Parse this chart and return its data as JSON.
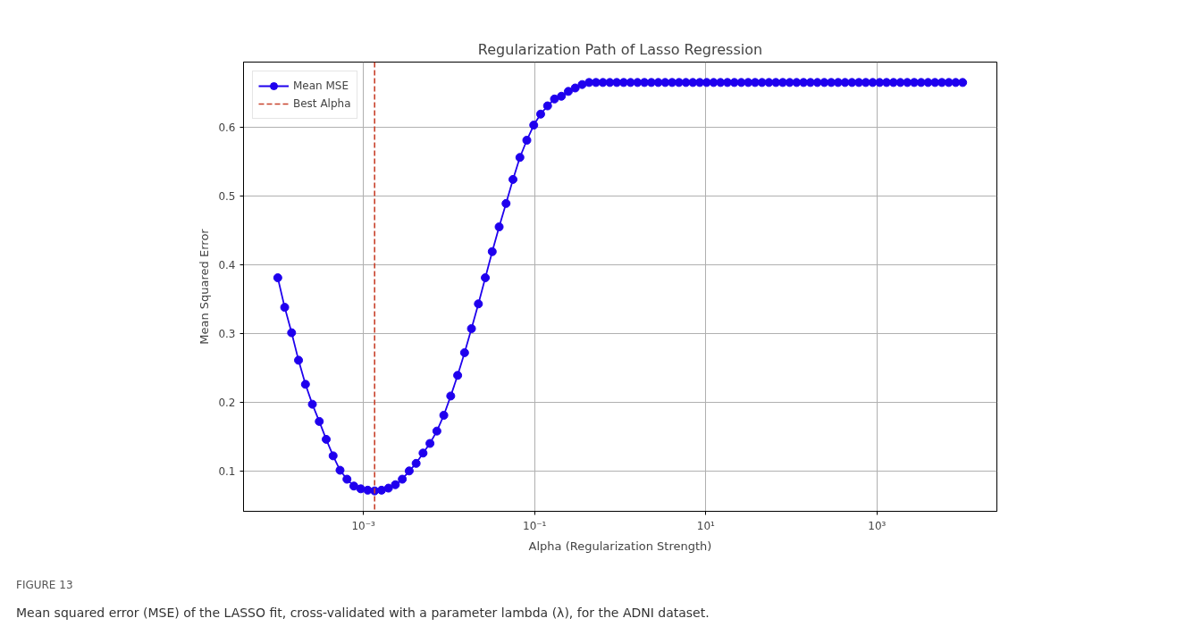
{
  "chart_data": {
    "type": "line",
    "title": "Regularization Path of Lasso Regression",
    "xlabel": "Alpha (Regularization Strength)",
    "ylabel": "Mean Squared Error",
    "x": [
      0.0001,
      0.00012045,
      0.00014508,
      0.00017475,
      0.00021049,
      0.00025354,
      0.00030539,
      0.00036784,
      0.00044306,
      0.00053367,
      0.00064281,
      0.00077426,
      0.0009326,
      0.0011233,
      0.001353,
      0.0016298,
      0.001963,
      0.0023645,
      0.002848,
      0.0034305,
      0.004132,
      0.004977,
      0.0059948,
      0.0072208,
      0.0086975,
      0.010476,
      0.012619,
      0.015199,
      0.018307,
      0.022051,
      0.026561,
      0.031993,
      0.038535,
      0.046416,
      0.055908,
      0.067342,
      0.081113,
      0.097701,
      0.11768,
      0.14175,
      0.17074,
      0.20565,
      0.24771,
      0.29836,
      0.35938,
      0.43288,
      0.5214,
      0.62803,
      0.75646,
      0.91116,
      1.0975,
      1.3219,
      1.5923,
      1.9179,
      2.3101,
      2.7826,
      3.3516,
      4.037,
      4.8626,
      5.857,
      7.0548,
      8.4975,
      10.235,
      12.328,
      14.85,
      17.886,
      21.544,
      25.95,
      31.257,
      37.649,
      45.349,
      54.623,
      65.793,
      79.248,
      95.455,
      114.98,
      138.49,
      166.81,
      200.92,
      242.01,
      291.51,
      351.12,
      422.92,
      509.41,
      613.59,
      739.07,
      890.22,
      1072.3,
      1291.5,
      1555.7,
      1873.8,
      2257,
      2718.6,
      3274.5,
      3944.2,
      4750.8,
      5722.4,
      6892.6,
      8302.2,
      10000
    ],
    "series": [
      {
        "name": "Mean MSE",
        "color": "#1f00ee",
        "values": [
          0.381,
          0.338,
          0.301,
          0.261,
          0.226,
          0.197,
          0.172,
          0.146,
          0.122,
          0.101,
          0.088,
          0.078,
          0.074,
          0.072,
          0.071,
          0.072,
          0.075,
          0.08,
          0.088,
          0.1,
          0.111,
          0.126,
          0.14,
          0.158,
          0.181,
          0.209,
          0.239,
          0.272,
          0.307,
          0.343,
          0.381,
          0.419,
          0.455,
          0.489,
          0.524,
          0.556,
          0.581,
          0.603,
          0.619,
          0.631,
          0.641,
          0.645,
          0.652,
          0.657,
          0.662,
          0.665,
          0.665,
          0.665,
          0.665,
          0.665,
          0.665,
          0.665,
          0.665,
          0.665,
          0.665,
          0.665,
          0.665,
          0.665,
          0.665,
          0.665,
          0.665,
          0.665,
          0.665,
          0.665,
          0.665,
          0.665,
          0.665,
          0.665,
          0.665,
          0.665,
          0.665,
          0.665,
          0.665,
          0.665,
          0.665,
          0.665,
          0.665,
          0.665,
          0.665,
          0.665,
          0.665,
          0.665,
          0.665,
          0.665,
          0.665,
          0.665,
          0.665,
          0.665,
          0.665,
          0.665,
          0.665,
          0.665,
          0.665,
          0.665,
          0.665,
          0.665,
          0.665,
          0.665,
          0.665,
          0.665
        ]
      }
    ],
    "log": "x",
    "xlim": [
      3.98e-05,
      25120
    ],
    "ylim": [
      0.0413,
      0.6947
    ],
    "xticks": [
      {
        "value": 0.001,
        "label": "10⁻³"
      },
      {
        "value": 0.1,
        "label": "10⁻¹"
      },
      {
        "value": 10,
        "label": "10¹"
      },
      {
        "value": 1000,
        "label": "10³"
      }
    ],
    "yticks": [
      0.1,
      0.2,
      0.3,
      0.4,
      0.5,
      0.6
    ],
    "ref_lines": [
      {
        "axis": "x",
        "value": 0.001353,
        "label": "Best Alpha",
        "color": "#c8412b",
        "line_style": "dashed"
      }
    ],
    "grid": true,
    "legend": "top left",
    "marker": "circle",
    "line_style": "solid",
    "annotations": [
      "FIGURE 13",
      "Mean squared error (MSE) of the LASSO fit, cross-validated with a parameter lambda (λ), for the ADNI dataset."
    ]
  }
}
